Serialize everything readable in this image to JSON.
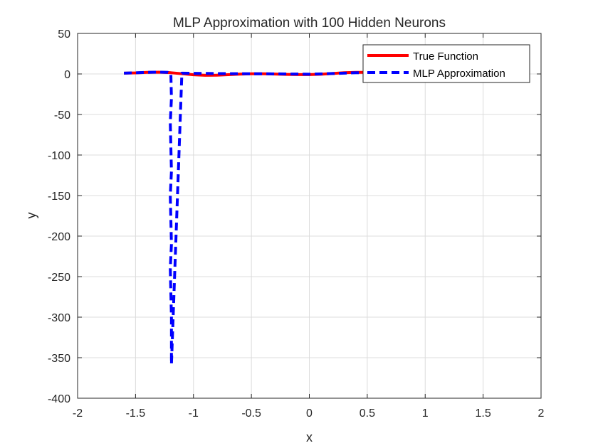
{
  "chart_data": {
    "type": "line",
    "title": "MLP Approximation with 100 Hidden Neurons",
    "xlabel": "x",
    "ylabel": "y",
    "xlim": [
      -2,
      2
    ],
    "ylim": [
      -400,
      50
    ],
    "xticks": [
      -2,
      -1.5,
      -1,
      -0.5,
      0,
      0.5,
      1,
      1.5,
      2
    ],
    "xtick_labels": [
      "-2",
      "-1.5",
      "-1",
      "-0.5",
      "0",
      "0.5",
      "1",
      "1.5",
      "2"
    ],
    "yticks": [
      -400,
      -350,
      -300,
      -250,
      -200,
      -150,
      -100,
      -50,
      0,
      50
    ],
    "ytick_labels": [
      "-400",
      "-350",
      "-300",
      "-250",
      "-200",
      "-150",
      "-100",
      "-50",
      "0",
      "50"
    ],
    "grid": true,
    "legend_position": "top-right",
    "series": [
      {
        "name": "True Function",
        "color": "#ff0000",
        "style": "solid",
        "x": [
          -1.6,
          -1.5,
          -1.4,
          -1.3,
          -1.2,
          -1.1,
          -1.0,
          -0.9,
          -0.8,
          -0.7,
          -0.6,
          -0.5,
          -0.4,
          -0.3,
          -0.2,
          -0.1,
          0.0,
          0.1,
          0.2,
          0.3,
          0.4,
          0.5,
          0.6
        ],
        "y": [
          1,
          1.3,
          2,
          2.2,
          1.6,
          0.3,
          -1,
          -1.6,
          -1.5,
          -0.9,
          -0.2,
          0.2,
          0.2,
          -0.1,
          -0.5,
          -0.8,
          -0.8,
          -0.3,
          0.6,
          1.5,
          2.0,
          1.9,
          1.2
        ]
      },
      {
        "name": "MLP Approximation",
        "color": "#0000ff",
        "style": "dashed",
        "x": [
          -1.6,
          -1.5,
          -1.4,
          -1.3,
          -1.22,
          -1.195,
          -1.19,
          -1.2,
          -1.195,
          -1.19,
          -1.2,
          -1.195,
          -1.19,
          -1.2,
          -1.195,
          -1.19,
          -1.19,
          -1.1,
          -1.0,
          -0.8,
          -0.6,
          -0.4,
          -0.2,
          0.0,
          0.2,
          0.4,
          0.6
        ],
        "y": [
          1,
          1.4,
          2,
          2.2,
          2,
          0,
          -30,
          -60,
          -90,
          -120,
          -150,
          -180,
          -210,
          -240,
          -270,
          -300,
          -358,
          1,
          0.8,
          0.5,
          0.3,
          0.2,
          0,
          -0.3,
          0.5,
          1.5,
          1.4
        ]
      }
    ]
  }
}
